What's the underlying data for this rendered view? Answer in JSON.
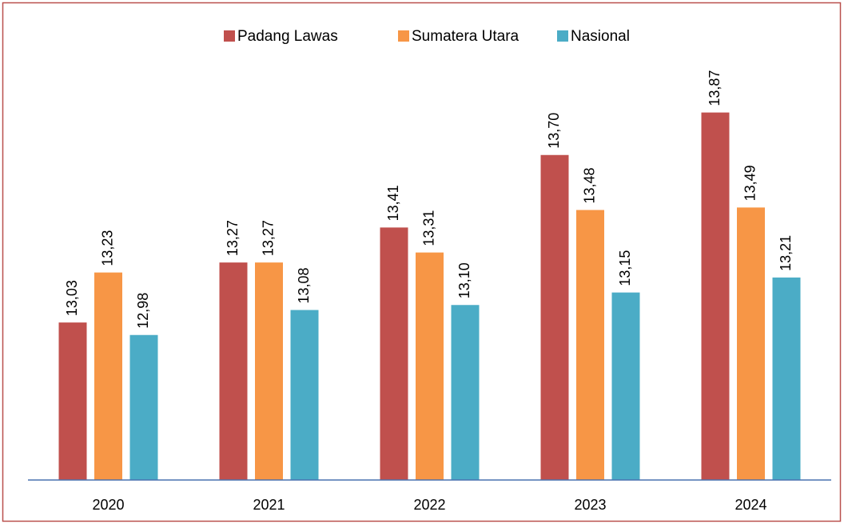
{
  "chart_data": {
    "type": "bar",
    "categories": [
      "2020",
      "2021",
      "2022",
      "2023",
      "2024"
    ],
    "series": [
      {
        "name": "Padang Lawas",
        "color": "#c0504d",
        "values": [
          13.03,
          13.27,
          13.41,
          13.7,
          13.87
        ],
        "value_labels": [
          "13,03",
          "13,27",
          "13,41",
          "13,70",
          "13,87"
        ]
      },
      {
        "name": "Sumatera Utara",
        "color": "#f79646",
        "values": [
          13.23,
          13.27,
          13.31,
          13.48,
          13.49
        ],
        "value_labels": [
          "13,23",
          "13,27",
          "13,31",
          "13,48",
          "13,49"
        ]
      },
      {
        "name": "Nasional",
        "color": "#4bacc6",
        "values": [
          12.98,
          13.08,
          13.1,
          13.15,
          13.21
        ],
        "value_labels": [
          "12,98",
          "13,08",
          "13,10",
          "13,15",
          "13,21"
        ]
      }
    ],
    "ylim": [
      12.4,
      14.0
    ],
    "legend": "top"
  }
}
